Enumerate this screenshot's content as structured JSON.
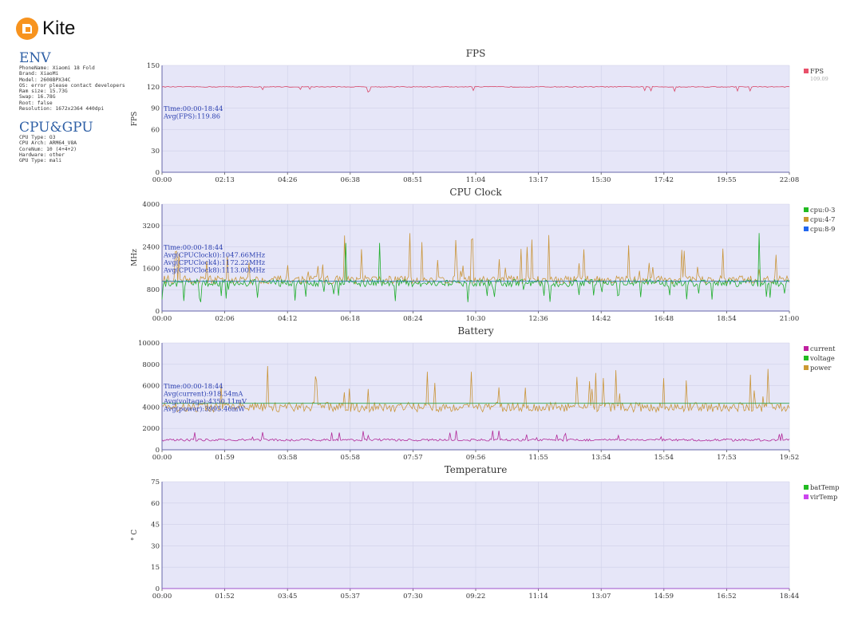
{
  "brand": {
    "name": "Kite"
  },
  "env": {
    "title": "ENV",
    "lines": [
      "PhoneName: Xiaomi 18 Fold",
      "Brand: XiaoMi",
      "Model: 2608BPX34C",
      "OS: error please contact developers",
      "Ram size: 15.73G",
      "Swap: 16.78G",
      "Root: false",
      "Resolution: 1672x2364 440dpi"
    ]
  },
  "cpugpu": {
    "title": "CPU&GPU",
    "lines": [
      "CPU Type: O3",
      "CPU Arch: ARM64_V8A",
      "CoreNum: 10 (4+4+2)",
      "Hardware: other",
      "GPU Type: mali"
    ]
  },
  "chart_data": [
    {
      "type": "line",
      "title": "FPS",
      "ylabel": "FPS",
      "ylim": [
        0,
        150
      ],
      "yticks": [
        0,
        30,
        60,
        90,
        120,
        150
      ],
      "xticks": [
        "00:00",
        "02:13",
        "04:26",
        "06:38",
        "08:51",
        "11:04",
        "13:17",
        "15:30",
        "17:42",
        "19:55",
        "22:08"
      ],
      "annotation": [
        "Time:00:00-18:44",
        "Avg(FPS):119.86"
      ],
      "legend": [
        {
          "name": "FPS",
          "sub": "109.09",
          "color": "#e8506a"
        }
      ],
      "series": [
        {
          "name": "FPS",
          "color": "#d9486a",
          "base": 119.9,
          "noise": 0.6,
          "spikes": 0.03,
          "spike_range": [
            -8,
            -3
          ],
          "points": 400
        }
      ]
    },
    {
      "type": "line",
      "title": "CPU Clock",
      "ylabel": "MHz",
      "ylim": [
        0,
        4000
      ],
      "yticks": [
        0,
        800,
        1600,
        2400,
        3200,
        4000
      ],
      "xticks": [
        "00:00",
        "02:06",
        "04:12",
        "06:18",
        "08:24",
        "10:30",
        "12:36",
        "14:42",
        "16:48",
        "18:54",
        "21:00"
      ],
      "annotation": [
        "Time:00:00-18:44",
        "Avg(CPUClock0):1047.66MHz",
        "Avg(CPUClock4):1172.22MHz",
        "Avg(CPUClock8):1113.00MHz"
      ],
      "legend": [
        {
          "name": "cpu:0-3",
          "color": "#22bb22"
        },
        {
          "name": "cpu:4-7",
          "color": "#cc9933"
        },
        {
          "name": "cpu:8-9",
          "color": "#2266ee"
        }
      ],
      "series": [
        {
          "name": "cpu:4-7",
          "color": "#c9953a",
          "base": 1172,
          "noise": 150,
          "spikes": 0.07,
          "spike_range": [
            300,
            1800
          ],
          "points": 520
        },
        {
          "name": "cpu:0-3",
          "color": "#1fae2c",
          "base": 1047,
          "noise": 140,
          "spikes": 0.05,
          "spike_range": [
            -650,
            -350
          ],
          "tall": 0.012,
          "tall_range": [
            1300,
            2150
          ],
          "points": 520
        },
        {
          "name": "cpu:8-9",
          "color": "#2a7ab8",
          "base": 1113,
          "noise": 0,
          "spikes": 0,
          "points": 2
        }
      ]
    },
    {
      "type": "line",
      "title": "Battery",
      "ylabel": "",
      "ylim": [
        0,
        10000
      ],
      "yticks": [
        0,
        2000,
        4000,
        6000,
        8000,
        10000
      ],
      "xticks": [
        "00:00",
        "01:59",
        "03:58",
        "05:58",
        "07:57",
        "09:56",
        "11:55",
        "13:54",
        "15:54",
        "17:53",
        "19:52"
      ],
      "annotation": [
        "Time:00:00-18:44",
        "Avg(current):918.54mA",
        "Avg(voltage):4350.11mV",
        "Avg(power):3995.46mW"
      ],
      "legend": [
        {
          "name": "current",
          "color": "#c020a0"
        },
        {
          "name": "voltage",
          "color": "#22bb22"
        },
        {
          "name": "power",
          "color": "#cc9933"
        }
      ],
      "series": [
        {
          "name": "power",
          "color": "#c9953a",
          "base": 3995,
          "noise": 450,
          "spikes": 0.05,
          "spike_range": [
            900,
            3600
          ],
          "points": 500
        },
        {
          "name": "voltage",
          "color": "#2aa44a",
          "base": 4350,
          "noise": 0,
          "spikes": 0,
          "points": 2
        },
        {
          "name": "current",
          "color": "#b22a9a",
          "base": 918,
          "noise": 110,
          "spikes": 0.04,
          "spike_range": [
            300,
            850
          ],
          "points": 500
        }
      ]
    },
    {
      "type": "line",
      "title": "Temperature",
      "ylabel": "° C",
      "ylim": [
        0,
        75
      ],
      "yticks": [
        0,
        15,
        30,
        45,
        60,
        75
      ],
      "xticks": [
        "00:00",
        "01:52",
        "03:45",
        "05:37",
        "07:30",
        "09:22",
        "11:14",
        "13:07",
        "14:59",
        "16:52",
        "18:44"
      ],
      "annotation": [],
      "legend": [
        {
          "name": "batTemp",
          "color": "#22bb22"
        },
        {
          "name": "virTemp",
          "color": "#cc44ee"
        }
      ],
      "series": [
        {
          "name": "virTemp",
          "color": "#b04ad8",
          "base": 0,
          "noise": 0,
          "spikes": 0,
          "points": 2
        }
      ]
    }
  ]
}
